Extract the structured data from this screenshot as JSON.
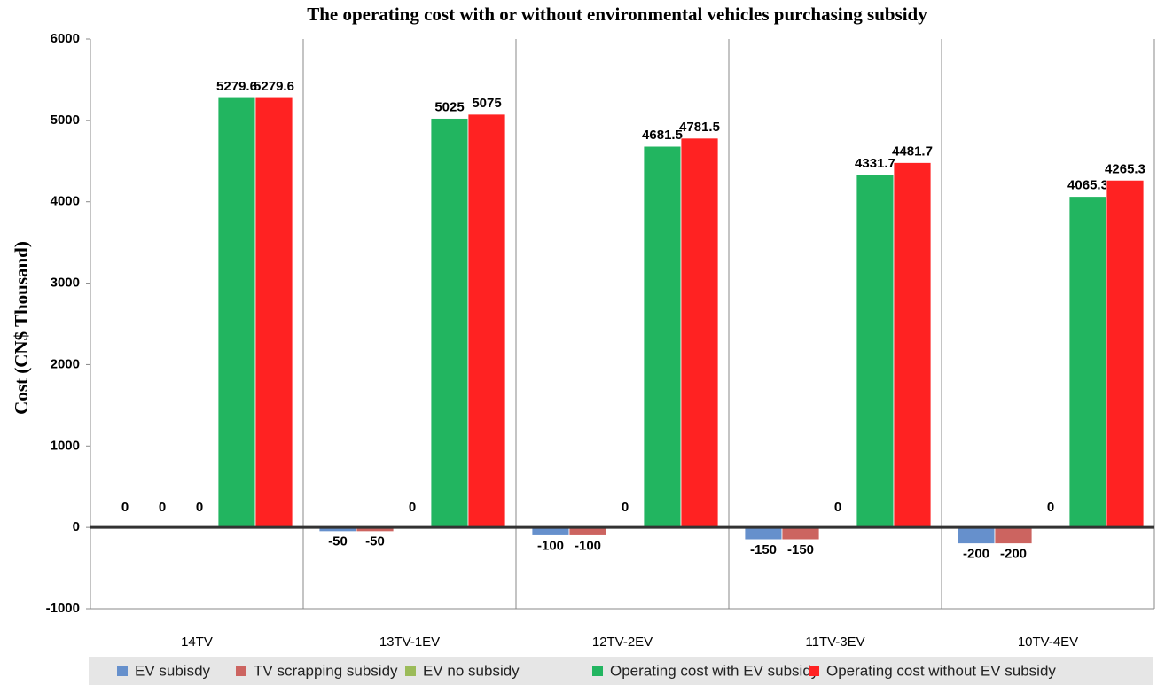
{
  "chart_data": {
    "type": "bar",
    "title": "The operating cost with or without environmental vehicles purchasing subsidy",
    "y_label": "Cost (CN$ Thousand)",
    "categories": [
      "14TV",
      "13TV-1EV",
      "12TV-2EV",
      "11TV-3EV",
      "10TV-4EV"
    ],
    "series": [
      {
        "name": "EV subisdy",
        "color": "#6690cc",
        "values": [
          0,
          -50,
          -100,
          -150,
          -200
        ]
      },
      {
        "name": "TV scrapping subsidy",
        "color": "#cc6460",
        "values": [
          0,
          -50,
          -100,
          -150,
          -200
        ]
      },
      {
        "name": "EV no subsidy",
        "color": "#9bbb59",
        "values": [
          0,
          0,
          0,
          0,
          0
        ]
      },
      {
        "name": "Operating cost with EV subsidy",
        "color": "#22b560",
        "values": [
          5279.6,
          5025,
          4681.5,
          4331.7,
          4065.3
        ]
      },
      {
        "name": "Operating cost without EV subsidy",
        "color": "#ff2222",
        "values": [
          5279.6,
          5075,
          4781.5,
          4481.7,
          4265.3
        ]
      }
    ],
    "ylim": [
      -1000,
      6000
    ],
    "yticks": [
      -1000,
      0,
      1000,
      2000,
      3000,
      4000,
      5000,
      6000
    ],
    "legend": "bottom"
  }
}
